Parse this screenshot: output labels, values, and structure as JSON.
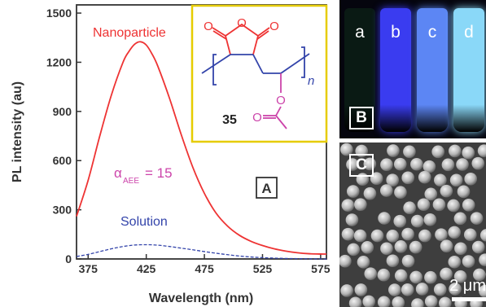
{
  "chart_data": {
    "type": "line",
    "xlabel": "Wavelength (nm)",
    "ylabel": "PL intensity (au)",
    "xlim": [
      365,
      580
    ],
    "ylim": [
      0,
      1550
    ],
    "xticks": [
      375,
      425,
      475,
      525,
      575
    ],
    "yticks": [
      0,
      300,
      600,
      900,
      1200,
      1500
    ],
    "series": [
      {
        "name": "Nanoparticle",
        "color": "#ee3333",
        "style": "solid",
        "x": [
          365,
          375,
          385,
          395,
          405,
          410,
          415,
          420,
          425,
          430,
          435,
          445,
          455,
          465,
          475,
          485,
          495,
          505,
          515,
          525,
          535,
          545,
          555,
          565,
          575,
          580
        ],
        "y": [
          260,
          480,
          750,
          1000,
          1200,
          1265,
          1310,
          1325,
          1305,
          1250,
          1175,
          980,
          760,
          560,
          400,
          280,
          200,
          145,
          108,
          82,
          62,
          48,
          38,
          32,
          30,
          30
        ]
      },
      {
        "name": "Solution",
        "color": "#3344aa",
        "style": "dashed",
        "x": [
          365,
          375,
          385,
          395,
          405,
          415,
          425,
          435,
          445,
          455,
          465,
          475,
          485,
          495,
          505,
          515,
          525,
          535,
          545,
          555,
          565,
          575,
          580
        ],
        "y": [
          15,
          28,
          45,
          62,
          76,
          85,
          87,
          84,
          76,
          66,
          56,
          45,
          35,
          26,
          18,
          12,
          8,
          5,
          3,
          2,
          1,
          0,
          0
        ]
      }
    ],
    "annotations": {
      "nanoparticle_label": "Nanoparticle",
      "solution_label": "Solution",
      "alpha_symbol": "α",
      "alpha_subscript": "AEE",
      "alpha_value": "= 15",
      "panel_label": "A",
      "compound_number": "35",
      "repeat_subscript": "n"
    }
  },
  "photo_b": {
    "panel_label": "B",
    "vials": [
      {
        "label": "a",
        "color": "#0a1a14"
      },
      {
        "label": "b",
        "color": "#3a3cf0"
      },
      {
        "label": "c",
        "color": "#5c86f4"
      },
      {
        "label": "d",
        "color": "#8ad8f8"
      }
    ]
  },
  "photo_c": {
    "panel_label": "C",
    "scale_text": "2 μm"
  },
  "colors": {
    "axis": "#333333",
    "structure_ring": "#ee3333",
    "structure_backbone": "#3344aa",
    "structure_ester": "#cc44aa",
    "inset_border": "#e6cc00"
  }
}
